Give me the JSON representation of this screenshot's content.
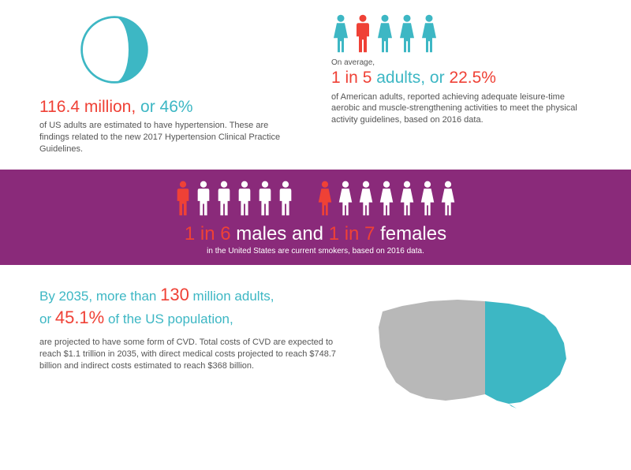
{
  "colors": {
    "red": "#ef4136",
    "teal": "#3db7c4",
    "purple": "#8a2a7a",
    "gray": "#b8b8b8",
    "text_gray": "#555555",
    "white": "#ffffff"
  },
  "section1": {
    "pie": {
      "highlight_pct": 46,
      "highlight_color": "#3db7c4",
      "rest_color": "#ffffff",
      "ring_color": "#3db7c4"
    },
    "headline_primary": "116.4 million,",
    "headline_conn": " or ",
    "headline_secondary": "46%",
    "body": "of US adults are estimated to have hypertension. These are findings related to the new 2017 Hypertension Clinical Practice Guidelines."
  },
  "section2": {
    "people": {
      "count": 5,
      "highlight_index": 1,
      "male_color": "#ef4136",
      "female_color": "#3db7c4"
    },
    "prefix": "On average,",
    "headline_primary": "1 in 5",
    "headline_middle": " adults, or ",
    "headline_secondary": "22.5%",
    "body": "of American adults, reported achieving adequate leisure-time aerobic and muscle-strengthening activities to meet the physical activity guidelines, based on 2016 data."
  },
  "band": {
    "males": {
      "count": 6,
      "highlight_index": 0,
      "highlight_color": "#ef4136",
      "color": "#ffffff"
    },
    "females": {
      "count": 7,
      "highlight_index": 0,
      "highlight_color": "#ef4136",
      "color": "#ffffff"
    },
    "headline_a": "1 in 6",
    "headline_b": " males and ",
    "headline_c": "1 in 7",
    "headline_d": " females",
    "sub": "in the United States are current smokers, based on 2016 data."
  },
  "section3": {
    "line1_a": "By 2035, more than ",
    "line1_b": "130",
    "line1_c": " million adults,",
    "line2_a": "or ",
    "line2_b": "45.1%",
    "line2_c": " of the US population,",
    "body": "are projected to have some form of CVD. Total costs of CVD are expected to reach $1.1 trillion in 2035, with direct medical costs projected to reach $748.7 billion and indirect costs estimated to reach $368 billion.",
    "map": {
      "left_color": "#b8b8b8",
      "right_color": "#3db7c4",
      "split_pct": 55
    }
  }
}
